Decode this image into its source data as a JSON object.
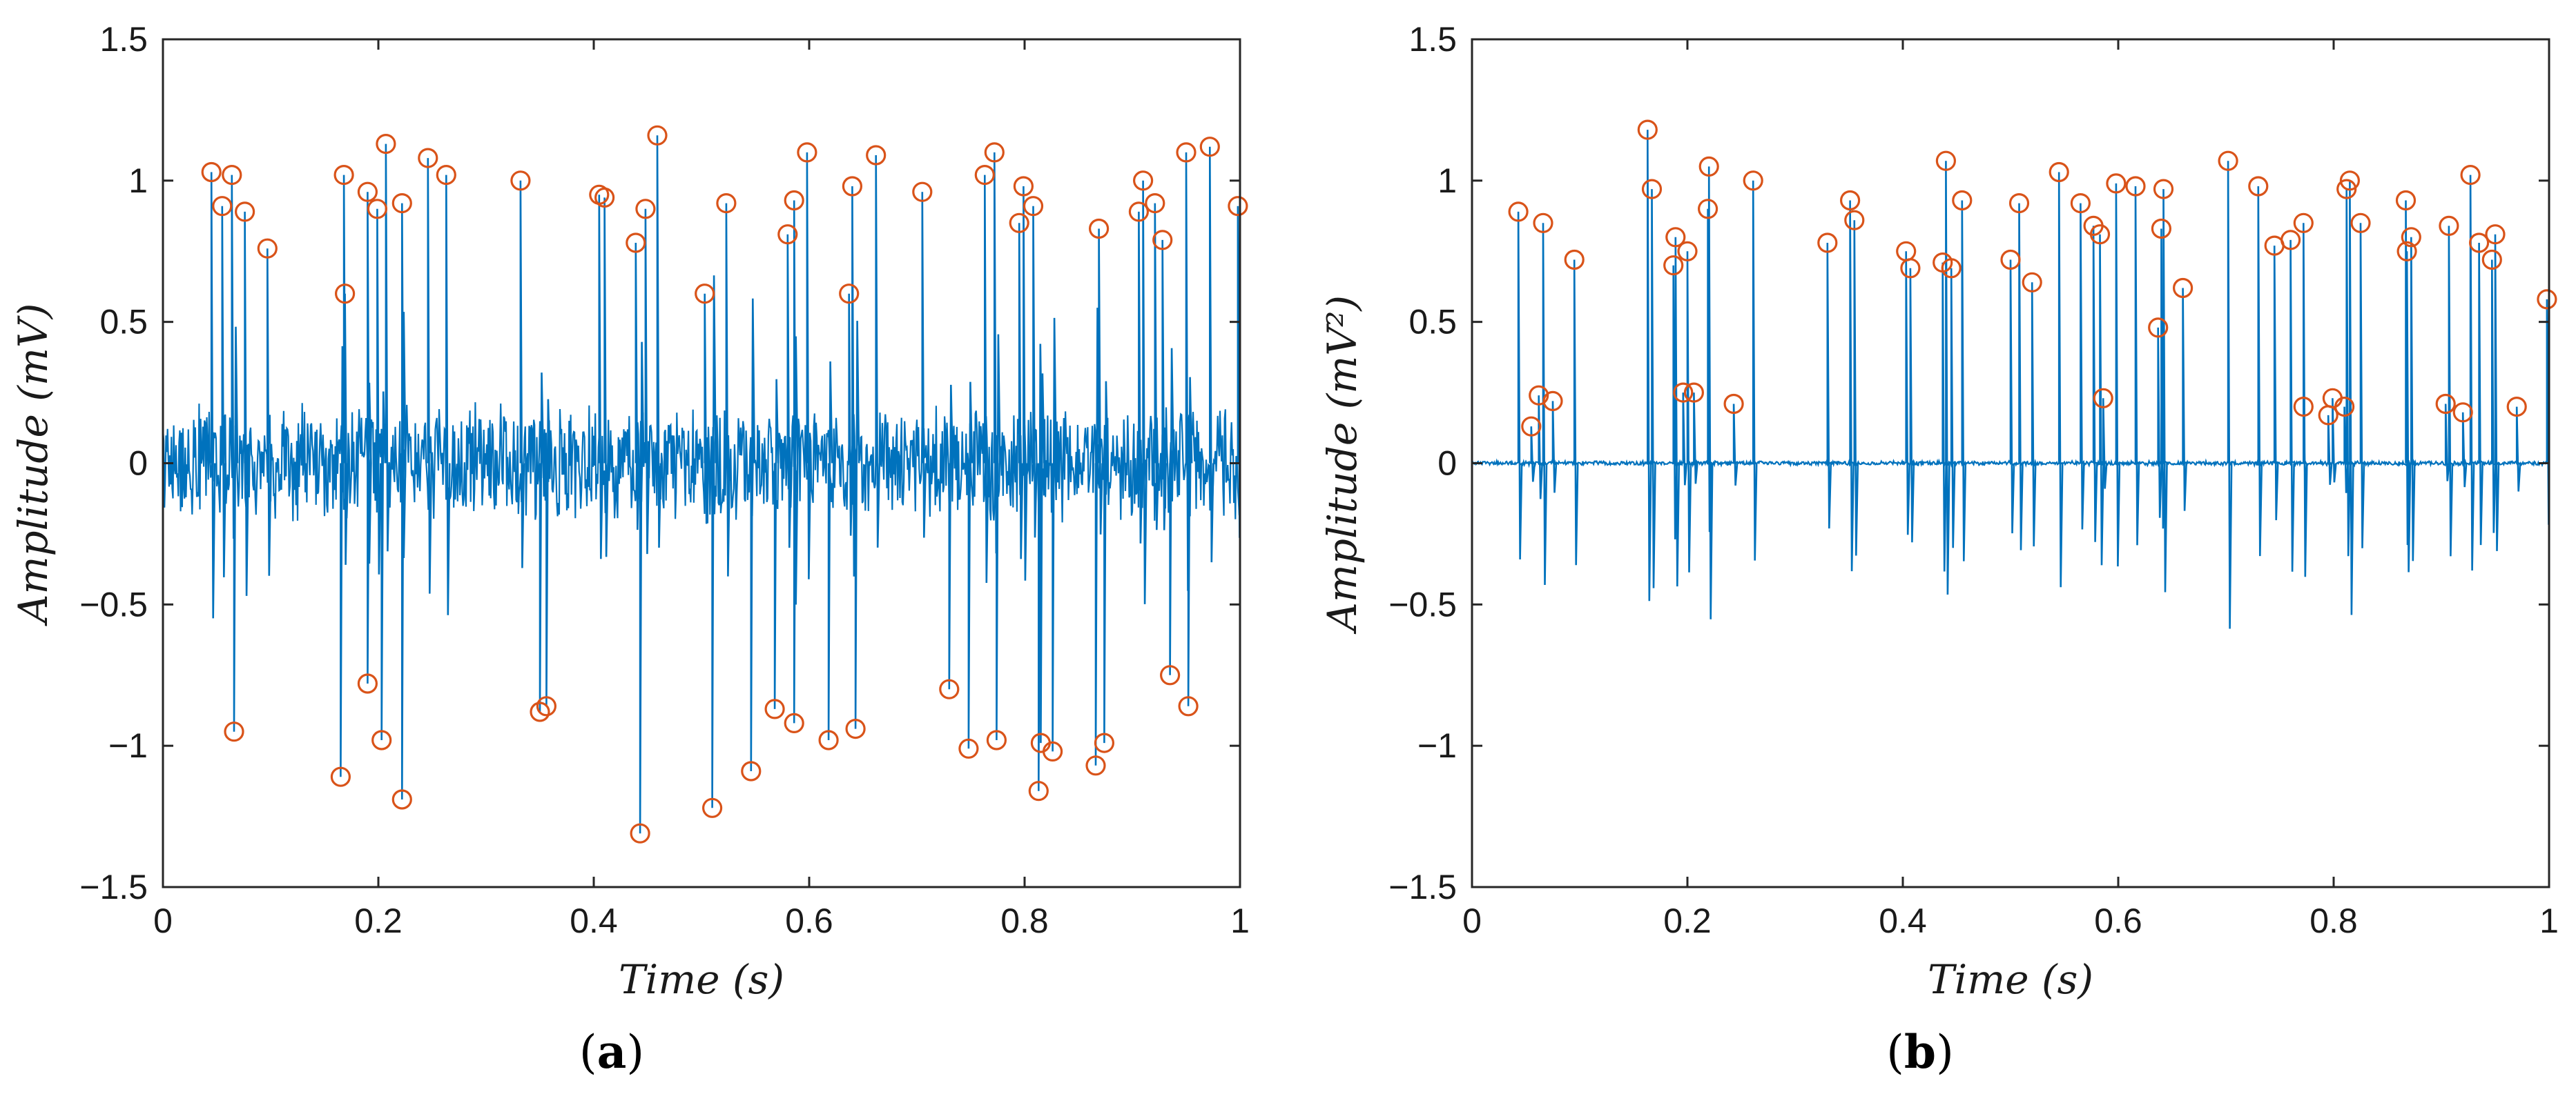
{
  "colors": {
    "signal": "#0072BD",
    "peak_marker": "#D95319",
    "axes": "#262626"
  },
  "chart_data": [
    {
      "type": "line",
      "panel_label": "a",
      "xlabel": "Time (s)",
      "ylabel": "Amplitude (mV)",
      "xlim": [
        0,
        1
      ],
      "ylim": [
        -1.5,
        1.5
      ],
      "x_ticks": [
        "0",
        "0.2",
        "0.4",
        "0.6",
        "0.8",
        "1"
      ],
      "y_ticks": [
        "−1.5",
        "−1",
        "−0.5",
        "0",
        "0.5",
        "1",
        "1.5"
      ],
      "grid": false,
      "background_noise_amplitude": 0.22,
      "series": [
        {
          "role": "signal",
          "spikes": [
            [
              0.045,
              1.03
            ],
            [
              0.055,
              0.91
            ],
            [
              0.064,
              1.02
            ],
            [
              0.066,
              -0.95
            ],
            [
              0.076,
              0.89
            ],
            [
              0.097,
              0.76
            ],
            [
              0.165,
              -1.11
            ],
            [
              0.168,
              1.02
            ],
            [
              0.169,
              0.6
            ],
            [
              0.19,
              0.96
            ],
            [
              0.19,
              -0.78
            ],
            [
              0.199,
              0.9
            ],
            [
              0.203,
              -0.98
            ],
            [
              0.207,
              1.13
            ],
            [
              0.222,
              0.92
            ],
            [
              0.222,
              -1.19
            ],
            [
              0.246,
              1.08
            ],
            [
              0.263,
              1.02
            ],
            [
              0.332,
              1.0
            ],
            [
              0.35,
              -0.88
            ],
            [
              0.356,
              -0.86
            ],
            [
              0.405,
              0.95
            ],
            [
              0.41,
              0.94
            ],
            [
              0.439,
              0.78
            ],
            [
              0.443,
              -1.31
            ],
            [
              0.448,
              0.9
            ],
            [
              0.459,
              1.16
            ],
            [
              0.503,
              0.6
            ],
            [
              0.51,
              -1.22
            ],
            [
              0.523,
              0.92
            ],
            [
              0.546,
              -1.09
            ],
            [
              0.568,
              -0.87
            ],
            [
              0.58,
              0.81
            ],
            [
              0.586,
              0.93
            ],
            [
              0.586,
              -0.92
            ],
            [
              0.598,
              1.1
            ],
            [
              0.618,
              -0.98
            ],
            [
              0.637,
              0.6
            ],
            [
              0.64,
              0.98
            ],
            [
              0.643,
              -0.94
            ],
            [
              0.662,
              1.09
            ],
            [
              0.705,
              0.96
            ],
            [
              0.73,
              -0.8
            ],
            [
              0.748,
              -1.01
            ],
            [
              0.763,
              1.02
            ],
            [
              0.772,
              1.1
            ],
            [
              0.774,
              -0.98
            ],
            [
              0.795,
              0.85
            ],
            [
              0.799,
              0.98
            ],
            [
              0.808,
              0.91
            ],
            [
              0.813,
              -1.16
            ],
            [
              0.815,
              -0.99
            ],
            [
              0.826,
              -1.02
            ],
            [
              0.866,
              -1.07
            ],
            [
              0.869,
              0.83
            ],
            [
              0.874,
              -0.99
            ],
            [
              0.906,
              0.89
            ],
            [
              0.91,
              1.0
            ],
            [
              0.921,
              0.92
            ],
            [
              0.928,
              0.79
            ],
            [
              0.935,
              -0.75
            ],
            [
              0.95,
              1.1
            ],
            [
              0.952,
              -0.86
            ],
            [
              0.972,
              1.12
            ],
            [
              0.998,
              0.91
            ]
          ]
        },
        {
          "role": "detected_peaks",
          "marker": "circle",
          "x": [
            0.045,
            0.055,
            0.064,
            0.066,
            0.076,
            0.097,
            0.165,
            0.168,
            0.169,
            0.19,
            0.19,
            0.199,
            0.203,
            0.207,
            0.222,
            0.222,
            0.246,
            0.263,
            0.332,
            0.35,
            0.356,
            0.405,
            0.41,
            0.439,
            0.443,
            0.448,
            0.459,
            0.503,
            0.51,
            0.523,
            0.546,
            0.568,
            0.58,
            0.586,
            0.586,
            0.598,
            0.618,
            0.637,
            0.64,
            0.643,
            0.662,
            0.705,
            0.73,
            0.748,
            0.763,
            0.772,
            0.774,
            0.795,
            0.799,
            0.808,
            0.813,
            0.815,
            0.826,
            0.866,
            0.869,
            0.874,
            0.906,
            0.91,
            0.921,
            0.928,
            0.935,
            0.95,
            0.952,
            0.972,
            0.998
          ],
          "y": [
            1.03,
            0.91,
            1.02,
            -0.95,
            0.89,
            0.76,
            -1.11,
            1.02,
            0.6,
            0.96,
            -0.78,
            0.9,
            -0.98,
            1.13,
            0.92,
            -1.19,
            1.08,
            1.02,
            1.0,
            -0.88,
            -0.86,
            0.95,
            0.94,
            0.78,
            -1.31,
            0.9,
            1.16,
            0.6,
            -1.22,
            0.92,
            -1.09,
            -0.87,
            0.81,
            0.93,
            -0.92,
            1.1,
            -0.98,
            0.6,
            0.98,
            -0.94,
            1.09,
            0.96,
            -0.8,
            -1.01,
            1.02,
            1.1,
            -0.98,
            0.85,
            0.98,
            0.91,
            -1.16,
            -0.99,
            -1.02,
            -1.07,
            0.83,
            -0.99,
            0.89,
            1.0,
            0.92,
            0.79,
            -0.75,
            1.1,
            -0.86,
            1.12,
            0.91
          ]
        }
      ]
    },
    {
      "type": "line",
      "panel_label": "b",
      "xlabel": "Time (s)",
      "ylabel": "Amplitude (mV²)",
      "xlim": [
        0,
        1
      ],
      "ylim": [
        -1.5,
        1.5
      ],
      "x_ticks": [
        "0",
        "0.2",
        "0.4",
        "0.6",
        "0.8",
        "1"
      ],
      "y_ticks": [
        "−1.5",
        "−1",
        "−0.5",
        "0",
        "0.5",
        "1",
        "1.5"
      ],
      "grid": false,
      "background_noise_amplitude": 0.008,
      "series": [
        {
          "role": "signal",
          "spikes": [
            [
              0.043,
              0.89
            ],
            [
              0.055,
              0.13
            ],
            [
              0.062,
              0.24
            ],
            [
              0.066,
              0.85
            ],
            [
              0.075,
              0.22
            ],
            [
              0.095,
              0.72
            ],
            [
              0.163,
              1.18
            ],
            [
              0.167,
              0.97
            ],
            [
              0.187,
              0.7
            ],
            [
              0.189,
              0.8
            ],
            [
              0.196,
              0.25
            ],
            [
              0.2,
              0.75
            ],
            [
              0.206,
              0.25
            ],
            [
              0.219,
              0.9
            ],
            [
              0.22,
              1.05
            ],
            [
              0.243,
              0.21
            ],
            [
              0.261,
              1.0
            ],
            [
              0.33,
              0.78
            ],
            [
              0.351,
              0.93
            ],
            [
              0.355,
              0.86
            ],
            [
              0.403,
              0.75
            ],
            [
              0.407,
              0.69
            ],
            [
              0.437,
              0.71
            ],
            [
              0.44,
              1.07
            ],
            [
              0.445,
              0.69
            ],
            [
              0.455,
              0.93
            ],
            [
              0.5,
              0.72
            ],
            [
              0.508,
              0.92
            ],
            [
              0.52,
              0.64
            ],
            [
              0.545,
              1.03
            ],
            [
              0.565,
              0.92
            ],
            [
              0.577,
              0.84
            ],
            [
              0.583,
              0.81
            ],
            [
              0.586,
              0.23
            ],
            [
              0.598,
              0.99
            ],
            [
              0.616,
              0.98
            ],
            [
              0.637,
              0.48
            ],
            [
              0.64,
              0.83
            ],
            [
              0.642,
              0.97
            ],
            [
              0.66,
              0.62
            ],
            [
              0.702,
              1.07
            ],
            [
              0.73,
              0.98
            ],
            [
              0.745,
              0.77
            ],
            [
              0.76,
              0.79
            ],
            [
              0.772,
              0.85
            ],
            [
              0.772,
              0.2
            ],
            [
              0.795,
              0.17
            ],
            [
              0.799,
              0.23
            ],
            [
              0.81,
              0.2
            ],
            [
              0.812,
              0.97
            ],
            [
              0.815,
              1.0
            ],
            [
              0.825,
              0.85
            ],
            [
              0.867,
              0.93
            ],
            [
              0.868,
              0.75
            ],
            [
              0.872,
              0.8
            ],
            [
              0.904,
              0.21
            ],
            [
              0.907,
              0.84
            ],
            [
              0.92,
              0.18
            ],
            [
              0.927,
              1.02
            ],
            [
              0.935,
              0.78
            ],
            [
              0.947,
              0.72
            ],
            [
              0.95,
              0.81
            ],
            [
              0.97,
              0.2
            ],
            [
              0.998,
              0.58
            ]
          ]
        },
        {
          "role": "detected_peaks",
          "marker": "circle",
          "x": [
            0.043,
            0.055,
            0.062,
            0.066,
            0.075,
            0.095,
            0.163,
            0.167,
            0.187,
            0.189,
            0.196,
            0.2,
            0.206,
            0.219,
            0.22,
            0.243,
            0.261,
            0.33,
            0.351,
            0.355,
            0.403,
            0.407,
            0.437,
            0.44,
            0.445,
            0.455,
            0.5,
            0.508,
            0.52,
            0.545,
            0.565,
            0.577,
            0.583,
            0.586,
            0.598,
            0.616,
            0.637,
            0.64,
            0.642,
            0.66,
            0.702,
            0.73,
            0.745,
            0.76,
            0.772,
            0.772,
            0.795,
            0.799,
            0.81,
            0.812,
            0.815,
            0.825,
            0.867,
            0.868,
            0.872,
            0.904,
            0.907,
            0.92,
            0.927,
            0.935,
            0.947,
            0.95,
            0.97,
            0.998
          ],
          "y": [
            0.89,
            0.13,
            0.24,
            0.85,
            0.22,
            0.72,
            1.18,
            0.97,
            0.7,
            0.8,
            0.25,
            0.75,
            0.25,
            0.9,
            1.05,
            0.21,
            1.0,
            0.78,
            0.93,
            0.86,
            0.75,
            0.69,
            0.71,
            1.07,
            0.69,
            0.93,
            0.72,
            0.92,
            0.64,
            1.03,
            0.92,
            0.84,
            0.81,
            0.23,
            0.99,
            0.98,
            0.48,
            0.83,
            0.97,
            0.62,
            1.07,
            0.98,
            0.77,
            0.79,
            0.85,
            0.2,
            0.17,
            0.23,
            0.2,
            0.97,
            1.0,
            0.85,
            0.93,
            0.75,
            0.8,
            0.21,
            0.84,
            0.18,
            1.02,
            0.78,
            0.72,
            0.81,
            0.2,
            0.58
          ]
        }
      ]
    }
  ]
}
